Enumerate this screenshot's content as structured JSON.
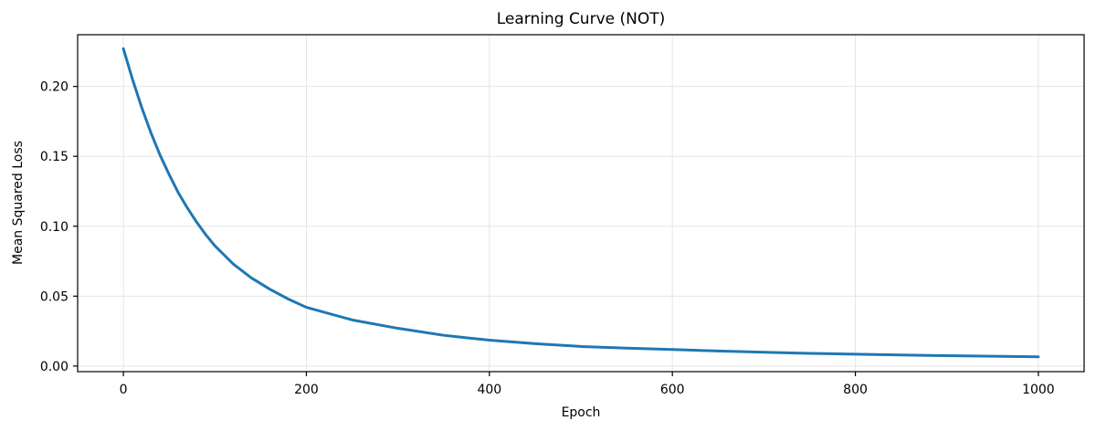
{
  "chart_data": {
    "type": "line",
    "title": "Learning Curve (NOT)",
    "xlabel": "Epoch",
    "ylabel": "Mean Squared Loss",
    "xlim": [
      -50,
      1050
    ],
    "ylim": [
      -0.004,
      0.237
    ],
    "xticks": [
      0,
      200,
      400,
      600,
      800,
      1000
    ],
    "xtick_labels": [
      "0",
      "200",
      "400",
      "600",
      "800",
      "1000"
    ],
    "yticks": [
      0.0,
      0.05,
      0.1,
      0.15,
      0.2
    ],
    "ytick_labels": [
      "0.00",
      "0.05",
      "0.10",
      "0.15",
      "0.20"
    ],
    "grid": true,
    "series": [
      {
        "color": "#1f77b4",
        "x": [
          0,
          10,
          20,
          30,
          40,
          50,
          60,
          70,
          80,
          90,
          100,
          120,
          140,
          160,
          180,
          200,
          250,
          300,
          350,
          400,
          450,
          500,
          550,
          600,
          650,
          700,
          750,
          800,
          850,
          900,
          950,
          1000
        ],
        "y": [
          0.227,
          0.205,
          0.185,
          0.167,
          0.151,
          0.137,
          0.124,
          0.113,
          0.103,
          0.094,
          0.086,
          0.073,
          0.063,
          0.055,
          0.048,
          0.042,
          0.033,
          0.027,
          0.022,
          0.0185,
          0.016,
          0.014,
          0.0128,
          0.0118,
          0.0108,
          0.0099,
          0.0091,
          0.0085,
          0.0079,
          0.0074,
          0.007,
          0.0066
        ]
      }
    ]
  }
}
